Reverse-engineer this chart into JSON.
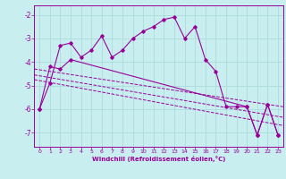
{
  "background_color": "#c8eef0",
  "grid_color": "#b0dede",
  "line_color": "#990099",
  "xlabel": "Windchill (Refroidissement éolien,°C)",
  "xlim": [
    -0.5,
    23.5
  ],
  "ylim": [
    -7.6,
    -1.6
  ],
  "yticks": [
    -7,
    -6,
    -5,
    -4,
    -3,
    -2
  ],
  "xticks": [
    0,
    1,
    2,
    3,
    4,
    5,
    6,
    7,
    8,
    9,
    10,
    11,
    12,
    13,
    14,
    15,
    16,
    17,
    18,
    19,
    20,
    21,
    22,
    23
  ],
  "curve1_x": [
    0,
    1,
    2,
    3,
    4,
    5,
    6,
    7,
    8,
    9,
    10,
    11,
    12,
    13,
    14,
    15,
    16,
    17,
    18,
    19,
    20,
    21,
    22,
    23
  ],
  "curve1_y": [
    -6.0,
    -4.9,
    -3.3,
    -3.2,
    -3.8,
    -3.5,
    -2.9,
    -3.8,
    -3.5,
    -3.0,
    -2.7,
    -2.5,
    -2.2,
    -2.1,
    -3.0,
    -2.5,
    -3.9,
    -4.4,
    -5.9,
    -5.9,
    -5.9,
    -7.1,
    -5.8,
    -7.1
  ],
  "curve2_x": [
    0,
    1,
    2,
    3,
    20,
    21,
    22,
    23
  ],
  "curve2_y": [
    -6.0,
    -4.2,
    -4.3,
    -3.9,
    -5.9,
    -7.1,
    -5.8,
    -7.1
  ],
  "reg1": [
    -4.3,
    -5.9
  ],
  "reg2": [
    -4.55,
    -6.35
  ],
  "reg3": [
    -4.75,
    -6.7
  ]
}
